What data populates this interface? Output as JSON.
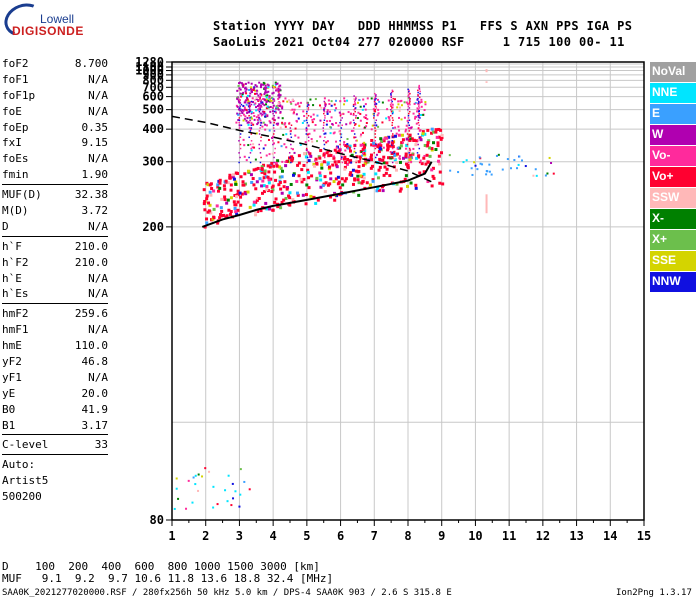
{
  "logo": {
    "top": "Lowell",
    "main": "DIGISONDE"
  },
  "header": {
    "line1": "Station YYYY DAY   DDD HHMMSS P1   FFS S AXN PPS IGA PS",
    "line2": "SaoLuis 2021 Oct04 277 020000 RSF     1 715 100 00- 11"
  },
  "params": {
    "group1": [
      {
        "label": "foF2",
        "value": "8.700"
      },
      {
        "label": "foF1",
        "value": "N/A"
      },
      {
        "label": "foF1p",
        "value": "N/A"
      },
      {
        "label": "foE",
        "value": "N/A"
      },
      {
        "label": "foEp",
        "value": "0.35"
      },
      {
        "label": "fxI",
        "value": "9.15"
      },
      {
        "label": "foEs",
        "value": "N/A"
      },
      {
        "label": "fmin",
        "value": "1.90"
      }
    ],
    "group2": [
      {
        "label": "MUF(D)",
        "value": "32.38"
      },
      {
        "label": "M(D)",
        "value": "3.72"
      },
      {
        "label": "D",
        "value": "N/A"
      }
    ],
    "group3": [
      {
        "label": "h`F",
        "value": "210.0"
      },
      {
        "label": "h`F2",
        "value": "210.0"
      },
      {
        "label": "h`E",
        "value": "N/A"
      },
      {
        "label": "h`Es",
        "value": "N/A"
      }
    ],
    "group4": [
      {
        "label": "hmF2",
        "value": "259.6"
      },
      {
        "label": "hmF1",
        "value": "N/A"
      },
      {
        "label": "hmE",
        "value": "110.0"
      },
      {
        "label": "yF2",
        "value": "46.8"
      },
      {
        "label": "yF1",
        "value": "N/A"
      },
      {
        "label": "yE",
        "value": "20.0"
      },
      {
        "label": "B0",
        "value": "41.9"
      },
      {
        "label": "B1",
        "value": "3.17"
      }
    ],
    "group5": [
      {
        "label": "C-level",
        "value": "33"
      }
    ],
    "auto": [
      "Auto:",
      "Artist5",
      "500200"
    ]
  },
  "legend": [
    {
      "label": "NoVal",
      "color": "#a0a0a0"
    },
    {
      "label": "NNE",
      "color": "#00e5ff"
    },
    {
      "label": "E",
      "color": "#3aa0ff"
    },
    {
      "label": "W",
      "color": "#b000b0"
    },
    {
      "label": "Vo-",
      "color": "#ff2a9c"
    },
    {
      "label": "Vo+",
      "color": "#ff0030"
    },
    {
      "label": "SSW",
      "color": "#ffb8b8"
    },
    {
      "label": "X-",
      "color": "#008000"
    },
    {
      "label": "X+",
      "color": "#6cbf4c"
    },
    {
      "label": "SSE",
      "color": "#d4d400"
    },
    {
      "label": "NNW",
      "color": "#1010e0"
    }
  ],
  "bottom": {
    "d_line": "D    100  200  400  600  800 1000 1500 3000 [km]",
    "muf_line": "MUF   9.1  9.2  9.7 10.6 11.8 13.6 18.8 32.4 [MHz]"
  },
  "footer": {
    "left": "SAA0K_2021277020000.RSF / 280fx256h 50 kHz 5.0 km / DPS-4 SAA0K 903 / 2.6 S 315.8 E",
    "right": "Ion2Png 1.3.17"
  },
  "chart_data": {
    "type": "scatter",
    "xlim": [
      1,
      15
    ],
    "ylim": [
      80,
      1280
    ],
    "y_scale": "reciprocal",
    "x_ticks": [
      1,
      2,
      3,
      4,
      5,
      6,
      7,
      8,
      9,
      10,
      11,
      12,
      13,
      14,
      15
    ],
    "y_ticks": [
      80,
      200,
      300,
      400,
      500,
      600,
      700,
      800,
      900,
      1000,
      1100,
      1280
    ],
    "grid": true,
    "virtual_height_profile": {
      "x": [
        1.9,
        2.5,
        3.0,
        3.5,
        4.0,
        5.0,
        6.0,
        7.0,
        8.0,
        8.5,
        8.7
      ],
      "y": [
        200,
        208,
        213,
        219,
        224,
        232,
        241,
        251,
        262,
        275,
        300
      ]
    },
    "true_height_profile": {
      "x": [
        1.0,
        2.0,
        3.0,
        4.0,
        5.0,
        6.0,
        7.0,
        8.0,
        8.7
      ],
      "y": [
        460,
        430,
        395,
        370,
        345,
        320,
        300,
        280,
        260
      ]
    },
    "echo_regions": [
      {
        "name": "F-trace",
        "x_range": [
          1.9,
          9.0
        ],
        "y_range": [
          200,
          320
        ],
        "class": "Vo+"
      },
      {
        "name": "spread-F",
        "x_range": [
          2.8,
          8.5
        ],
        "y_range": [
          300,
          600
        ],
        "class": "Vo-"
      },
      {
        "name": "upper spread",
        "x_range": [
          2.9,
          4.2
        ],
        "y_range": [
          420,
          780
        ],
        "class": "W"
      },
      {
        "name": "E-layer",
        "x_range": [
          1.0,
          3.3
        ],
        "y_range": [
          82,
          90
        ],
        "class": "NNE"
      },
      {
        "name": "far echoes",
        "x_range": [
          9.2,
          12.3
        ],
        "y_range": [
          270,
          320
        ],
        "class": "E"
      }
    ]
  }
}
